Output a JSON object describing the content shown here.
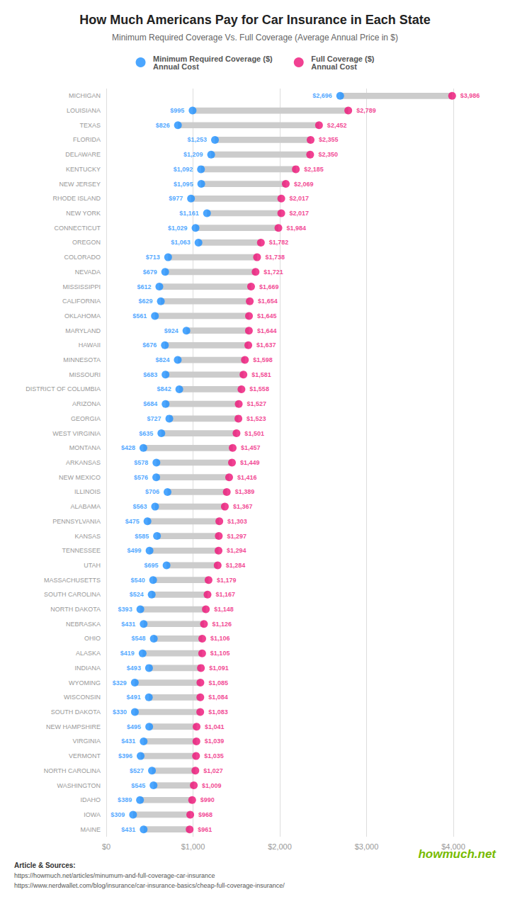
{
  "chart_data": {
    "type": "dumbbell",
    "orientation": "horizontal",
    "title": "How Much Americans Pay for Car Insurance in Each State",
    "subtitle": "Minimum Required Coverage Vs. Full Coverage (Average Annual Price in $)",
    "color": "#CCCCCC",
    "categories": [
      "MICHIGAN",
      "LOUISIANA",
      "TEXAS",
      "FLORIDA",
      "DELAWARE",
      "KENTUCKY",
      "NEW JERSEY",
      "RHODE ISLAND",
      "NEW YORK",
      "CONNECTICUT",
      "OREGON",
      "COLORADO",
      "NEVADA",
      "MISSISSIPPI",
      "CALIFORNIA",
      "OKLAHOMA",
      "MARYLAND",
      "HAWAII",
      "MINNESOTA",
      "MISSOURI",
      "DISTRICT OF COLUMBIA",
      "ARIZONA",
      "GEORGIA",
      "WEST VIRGINIA",
      "MONTANA",
      "ARKANSAS",
      "NEW MEXICO",
      "ILLINOIS",
      "ALABAMA",
      "PENNSYLVANIA",
      "KANSAS",
      "TENNESSEE",
      "UTAH",
      "MASSACHUSETTS",
      "SOUTH CAROLINA",
      "NORTH DAKOTA",
      "NEBRASKA",
      "OHIO",
      "ALASKA",
      "INDIANA",
      "WYOMING",
      "WISCONSIN",
      "SOUTH DAKOTA",
      "NEW HAMPSHIRE",
      "VIRGINIA",
      "VERMONT",
      "NORTH CAROLINA",
      "WASHINGTON",
      "IDAHO",
      "IOWA",
      "MAINE"
    ],
    "series": [
      {
        "name": "Minimum Required Coverage ($)\nAnnual Cost",
        "color": "#1E90FF",
        "values": [
          2696,
          995,
          826,
          1253,
          1209,
          1092,
          1095,
          977,
          1161,
          1029,
          1063,
          713,
          679,
          612,
          629,
          561,
          924,
          676,
          824,
          683,
          842,
          684,
          727,
          635,
          428,
          578,
          576,
          706,
          563,
          475,
          585,
          499,
          695,
          540,
          524,
          393,
          431,
          548,
          419,
          493,
          329,
          491,
          330,
          495,
          431,
          396,
          527,
          545,
          389,
          309,
          431
        ],
        "value_labels": [
          "$2,696",
          "$995",
          "$826",
          "$1,253",
          "$1,209",
          "$1,092",
          "$1,095",
          "$977",
          "$1,161",
          "$1,029",
          "$1,063",
          "$713",
          "$679",
          "$612",
          "$629",
          "$561",
          "$924",
          "$676",
          "$824",
          "$683",
          "$842",
          "$684",
          "$727",
          "$635",
          "$428",
          "$578",
          "$576",
          "$706",
          "$563",
          "$475",
          "$585",
          "$499",
          "$695",
          "$540",
          "$524",
          "$393",
          "$431",
          "$548",
          "$419",
          "$493",
          "$329",
          "$491",
          "$330",
          "$495",
          "$431",
          "$396",
          "$527",
          "$545",
          "$389",
          "$309",
          "$431"
        ]
      },
      {
        "name": "Full Coverage ($)\nAnnual Cost",
        "color": "#EE1177",
        "values": [
          3986,
          2789,
          2452,
          2355,
          2350,
          2185,
          2069,
          2017,
          2017,
          1984,
          1782,
          1738,
          1721,
          1669,
          1654,
          1645,
          1644,
          1637,
          1598,
          1581,
          1558,
          1527,
          1523,
          1501,
          1457,
          1449,
          1416,
          1389,
          1367,
          1303,
          1297,
          1294,
          1284,
          1179,
          1167,
          1148,
          1126,
          1106,
          1105,
          1091,
          1085,
          1084,
          1083,
          1041,
          1039,
          1035,
          1027,
          1009,
          990,
          968,
          961
        ],
        "value_labels": [
          "$3,986",
          "$2,789",
          "$2,452",
          "$2,355",
          "$2,350",
          "$2,185",
          "$2,069",
          "$2,017",
          "$2,017",
          "$1,984",
          "$1,782",
          "$1,738",
          "$1,721",
          "$1,669",
          "$1,654",
          "$1,645",
          "$1,644",
          "$1,637",
          "$1,598",
          "$1,581",
          "$1,558",
          "$1,527",
          "$1,523",
          "$1,501",
          "$1,457",
          "$1,449",
          "$1,416",
          "$1,389",
          "$1,367",
          "$1,303",
          "$1,297",
          "$1,294",
          "$1,284",
          "$1,179",
          "$1,167",
          "$1,148",
          "$1,126",
          "$1,106",
          "$1,105",
          "$1,091",
          "$1,085",
          "$1,084",
          "$1,083",
          "$1,041",
          "$1,039",
          "$1,035",
          "$1,027",
          "$1,009",
          "$990",
          "$968",
          "$961"
        ]
      }
    ],
    "xlim": [
      0,
      4000
    ],
    "xticks": [
      {
        "value": 0,
        "label": "$0"
      },
      {
        "value": 1000,
        "label": "$1,000"
      },
      {
        "value": 2000,
        "label": "$2,000"
      },
      {
        "value": 3000,
        "label": "$3,000"
      },
      {
        "value": 4000,
        "label": "$4,000"
      }
    ],
    "grid": true,
    "legend": "top",
    "data_labels": true,
    "annotations": [
      "Article & Sources:",
      "https://howmuch.net/articles/minumum-and-full-coverage-car-insurance",
      "https://www.nerdwallet.com/blog/insurance/car-insurance-basics/cheap-full-coverage-insurance/",
      "howmuch.net"
    ]
  }
}
